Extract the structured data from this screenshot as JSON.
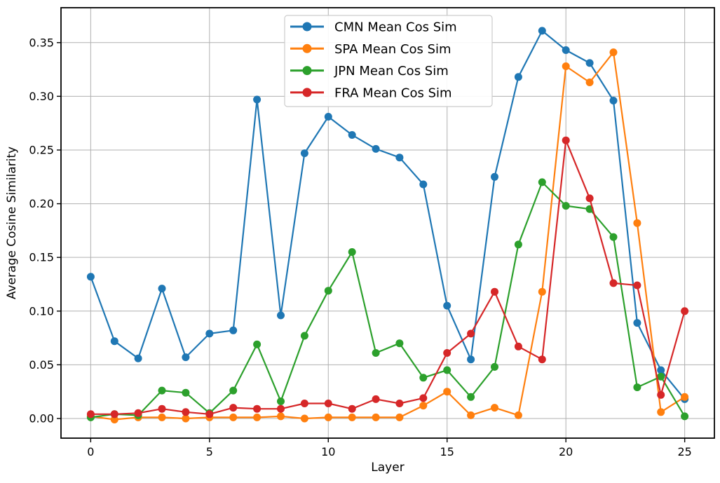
{
  "figure": {
    "background": "#ffffff",
    "grid_color": "#b0b0b0",
    "spine_color": "#000000",
    "legend_face_color": "#ffffff",
    "legend_edge_color": "#cccccc"
  },
  "chart_data": {
    "type": "line",
    "title": "",
    "xlabel": "Layer",
    "ylabel": "Average Cosine Similarity",
    "grid": true,
    "legend_position": "upper center (inside axes)",
    "x": [
      0,
      1,
      2,
      3,
      4,
      5,
      6,
      7,
      8,
      9,
      10,
      11,
      12,
      13,
      14,
      15,
      16,
      17,
      18,
      19,
      20,
      21,
      22,
      23,
      24,
      25
    ],
    "xticks": [
      0,
      5,
      10,
      15,
      20,
      25
    ],
    "yticks": [
      0.0,
      0.05,
      0.1,
      0.15,
      0.2,
      0.25,
      0.3,
      0.35
    ],
    "ytick_labels": [
      "0.00",
      "0.05",
      "0.10",
      "0.15",
      "0.20",
      "0.25",
      "0.30",
      "0.35"
    ],
    "xlim": [
      -1.25,
      26.25
    ],
    "ylim": [
      -0.0183,
      0.3825
    ],
    "series": [
      {
        "name": "CMN Mean Cos Sim",
        "color": "#1f77b4",
        "marker": "circle",
        "values": [
          0.132,
          0.072,
          0.056,
          0.121,
          0.057,
          0.079,
          0.082,
          0.297,
          0.096,
          0.247,
          0.281,
          0.264,
          0.251,
          0.243,
          0.218,
          0.105,
          0.055,
          0.225,
          0.318,
          0.361,
          0.343,
          0.331,
          0.296,
          0.089,
          0.045,
          0.018
        ]
      },
      {
        "name": "SPA Mean Cos Sim",
        "color": "#ff7f0e",
        "marker": "circle",
        "values": [
          0.002,
          -0.001,
          0.001,
          0.001,
          0.0,
          0.001,
          0.001,
          0.001,
          0.002,
          0.0,
          0.001,
          0.001,
          0.001,
          0.001,
          0.012,
          0.025,
          0.003,
          0.01,
          0.003,
          0.118,
          0.328,
          0.313,
          0.341,
          0.182,
          0.006,
          0.02
        ]
      },
      {
        "name": "JPN Mean Cos Sim",
        "color": "#2ca02c",
        "marker": "circle",
        "values": [
          0.001,
          0.004,
          0.003,
          0.026,
          0.024,
          0.005,
          0.026,
          0.069,
          0.016,
          0.077,
          0.119,
          0.155,
          0.061,
          0.07,
          0.038,
          0.045,
          0.02,
          0.048,
          0.162,
          0.22,
          0.198,
          0.195,
          0.169,
          0.029,
          0.039,
          0.002
        ]
      },
      {
        "name": "FRA Mean Cos Sim",
        "color": "#d62728",
        "marker": "circle",
        "values": [
          0.004,
          0.004,
          0.005,
          0.009,
          0.006,
          0.004,
          0.01,
          0.009,
          0.009,
          0.014,
          0.014,
          0.009,
          0.018,
          0.014,
          0.019,
          0.061,
          0.079,
          0.118,
          0.067,
          0.055,
          0.259,
          0.205,
          0.126,
          0.124,
          0.022,
          0.1
        ]
      }
    ]
  }
}
